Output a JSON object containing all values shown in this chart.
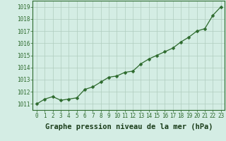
{
  "x": [
    0,
    1,
    2,
    3,
    4,
    5,
    6,
    7,
    8,
    9,
    10,
    11,
    12,
    13,
    14,
    15,
    16,
    17,
    18,
    19,
    20,
    21,
    22,
    23
  ],
  "y": [
    1011.0,
    1011.4,
    1011.6,
    1011.3,
    1011.4,
    1011.5,
    1012.2,
    1012.4,
    1012.8,
    1013.2,
    1013.3,
    1013.6,
    1013.7,
    1014.3,
    1014.7,
    1015.0,
    1015.3,
    1015.6,
    1016.1,
    1016.5,
    1017.0,
    1017.2,
    1018.3,
    1019.0
  ],
  "line_color": "#2d6a2d",
  "marker_color": "#2d6a2d",
  "bg_color": "#d4ede4",
  "grid_color": "#b0ccbe",
  "xlabel": "Graphe pression niveau de la mer (hPa)",
  "xlabel_fontsize": 7.5,
  "ylabel_ticks": [
    1011,
    1012,
    1013,
    1014,
    1015,
    1016,
    1017,
    1018,
    1019
  ],
  "xlim": [
    -0.5,
    23.5
  ],
  "ylim": [
    1010.5,
    1019.5
  ],
  "tick_fontsize": 5.5,
  "marker_size": 2.5,
  "linewidth": 0.9
}
